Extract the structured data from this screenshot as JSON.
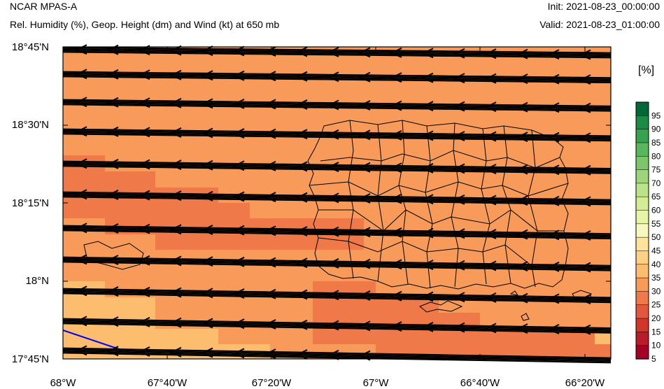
{
  "header": {
    "model": "NCAR MPAS-A",
    "field": "Rel. Humidity (%), Geop. Height (dm) and Wind (kt) at 650 mb",
    "init": "Init: 2021-08-23_00:00:00",
    "valid": "Valid: 2021-08-23_01:00:00"
  },
  "axes": {
    "y_labels": [
      "18°45'N",
      "18°30'N",
      "18°15'N",
      "18°N",
      "17°45'N"
    ],
    "x_labels": [
      "68°W",
      "67°40'W",
      "67°20'W",
      "67°W",
      "66°40'W",
      "66°20'W"
    ]
  },
  "colorbar": {
    "unit": "[%]",
    "labels": [
      "95",
      "90",
      "85",
      "80",
      "75",
      "70",
      "65",
      "60",
      "55",
      "50",
      "45",
      "40",
      "35",
      "30",
      "25",
      "20",
      "15",
      "10",
      "5"
    ],
    "colors": [
      "#006837",
      "#1a8a45",
      "#36a14e",
      "#59b55e",
      "#7cc56a",
      "#9ed47a",
      "#bde38a",
      "#d4ed94",
      "#e8f5a6",
      "#f6f8bf",
      "#fee39a",
      "#fdd185",
      "#fcbd6e",
      "#f79a5a",
      "#f0794a",
      "#e3583c",
      "#d4352b",
      "#bb1a28",
      "#a50026"
    ]
  },
  "map": {
    "background_color": "#f79a5a",
    "drier_color": "#f0794a",
    "moister_color": "#fcbd6e",
    "contour_color": "#0000ff"
  }
}
